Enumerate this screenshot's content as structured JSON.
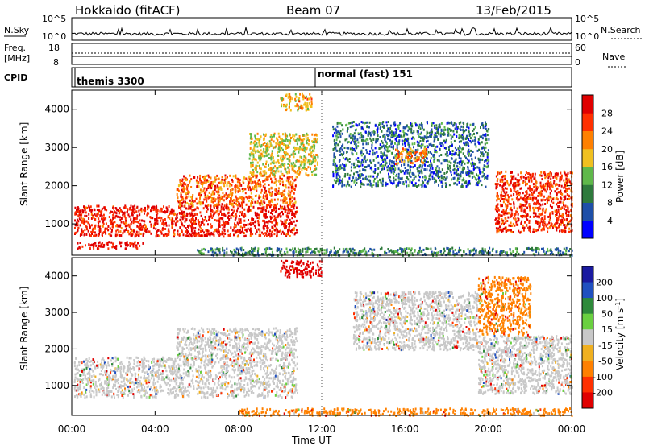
{
  "header": {
    "title": "Hokkaido (fitACF)",
    "beam": "Beam 07",
    "date": "13/Feb/2015"
  },
  "strip_nsky": {
    "label": "N.Sky",
    "right_label": "N.Search",
    "left_ticks": [
      "10^5",
      "10^0"
    ],
    "right_ticks": [
      "10^5",
      "10^0"
    ]
  },
  "strip_freq": {
    "label_line1": "Freq.",
    "label_line2": "[MHz]",
    "right_label": "Nave",
    "left_ticks": [
      "18",
      "8"
    ],
    "right_ticks": [
      "60",
      "0"
    ]
  },
  "cpid": {
    "label": "CPID",
    "modes": [
      {
        "text": "themis 3300",
        "start_hour": 0
      },
      {
        "text": "normal (fast) 151",
        "start_hour": 12
      }
    ]
  },
  "x_axis": {
    "label": "Time UT",
    "tick_labels": [
      "00:00",
      "04:00",
      "08:00",
      "12:00",
      "16:00",
      "20:00",
      "00:00"
    ],
    "range_hours": [
      0,
      24
    ]
  },
  "chart_data": [
    {
      "type": "heatmap",
      "name": "power",
      "ylabel": "Slant Range [km]",
      "y_tick_labels": [
        "1000",
        "2000",
        "3000",
        "4000"
      ],
      "ylim": [
        180,
        4500
      ],
      "colorbar": {
        "label": "Power [dB]",
        "ticks": [
          "4",
          "8",
          "12",
          "16",
          "20",
          "24",
          "28"
        ],
        "colors": [
          "#0000ff",
          "#1e4fa8",
          "#2e7a3c",
          "#5fb84a",
          "#f0c020",
          "#ff8000",
          "#ff3000",
          "#e00000"
        ]
      },
      "regions": [
        {
          "t0": 0.1,
          "t1": 10.8,
          "r0": 700,
          "r1": 1500,
          "level": 0.9
        },
        {
          "t0": 5.0,
          "t1": 10.8,
          "r0": 1500,
          "r1": 2300,
          "level": 0.75
        },
        {
          "t0": 8.5,
          "t1": 11.8,
          "r0": 2300,
          "r1": 3400,
          "level": 0.55
        },
        {
          "t0": 10.0,
          "t1": 11.5,
          "r0": 4000,
          "r1": 4450,
          "level": 0.6
        },
        {
          "t0": 12.5,
          "t1": 20.0,
          "r0": 2000,
          "r1": 3700,
          "level": 0.25
        },
        {
          "t0": 15.5,
          "t1": 17.0,
          "r0": 2600,
          "r1": 3000,
          "level": 0.7
        },
        {
          "t0": 20.3,
          "t1": 24.0,
          "r0": 800,
          "r1": 2400,
          "level": 0.85
        },
        {
          "t0": 0.2,
          "t1": 3.4,
          "r0": 380,
          "r1": 560,
          "level": 0.95
        },
        {
          "t0": 6.0,
          "t1": 24.0,
          "r0": 200,
          "r1": 400,
          "level": 0.3
        }
      ]
    },
    {
      "type": "heatmap",
      "name": "velocity",
      "ylabel": "Slant Range [km]",
      "y_tick_labels": [
        "1000",
        "2000",
        "3000",
        "4000"
      ],
      "ylim": [
        180,
        4500
      ],
      "colorbar": {
        "label": "Velocity [m s^-1]",
        "ticks": [
          "200",
          "100",
          "50",
          "15",
          "-15",
          "-50",
          "-100",
          "-200"
        ],
        "colors": [
          "#1a1aa0",
          "#2050c0",
          "#2e8a3a",
          "#6ad040",
          "#c8c8c8",
          "#f0b020",
          "#ff8000",
          "#ff3000",
          "#e00000"
        ]
      },
      "regions": [
        {
          "t0": 0.1,
          "t1": 10.8,
          "r0": 700,
          "r1": 1800,
          "level": 0.45
        },
        {
          "t0": 5.0,
          "t1": 10.8,
          "r0": 1800,
          "r1": 2600,
          "level": 0.45
        },
        {
          "t0": 13.5,
          "t1": 19.5,
          "r0": 2000,
          "r1": 3600,
          "level": 0.45
        },
        {
          "t0": 19.5,
          "t1": 24.0,
          "r0": 800,
          "r1": 2400,
          "level": 0.45
        },
        {
          "t0": 19.5,
          "t1": 22.0,
          "r0": 2400,
          "r1": 4000,
          "level": 0.3
        },
        {
          "t0": 8.0,
          "t1": 24.0,
          "r0": 200,
          "r1": 400,
          "level": 0.3
        },
        {
          "t0": 10.0,
          "t1": 12.0,
          "r0": 4000,
          "r1": 4450,
          "level": 0.1
        }
      ]
    }
  ]
}
